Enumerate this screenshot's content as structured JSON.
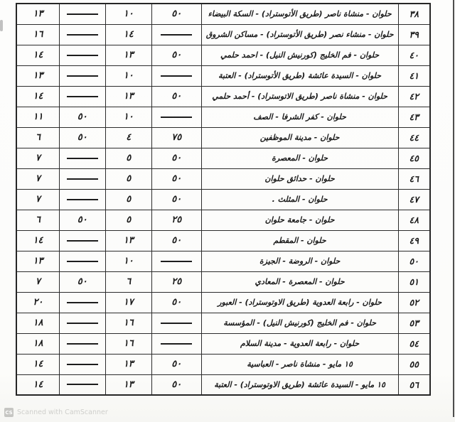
{
  "document": {
    "description": "Scanned page of an Arabic bus-route fare table (routes 38-56, Helwan / 15 May lines). No header row visible; four numeric columns per row hold two fare pairs in Egyptian pounds and piasters written in Arabic-Indic numerals; long dashes mean no piasters value.",
    "dash_symbol": "—",
    "colors": {
      "page_background": "#fdfdfc",
      "table_line": "#2c2c2c",
      "ink": "#1b1b1b",
      "watermark_gray": "#cfcfcc"
    }
  },
  "table": {
    "column_order_note": "Columns right-to-left: route number, route name, then four fare cells (rightmost first).",
    "rows": [
      {
        "no": "٣٨",
        "route": "حلوان - منشاة ناصر (طريق الأتوستراد) - السكة البيضاء",
        "fares": [
          "٥٠",
          "١٠",
          "—",
          "١٣"
        ]
      },
      {
        "no": "٣٩",
        "route": "حلوان - منشاء نصر (طريق الأتوستراد) - مساكن الشروق",
        "fares": [
          "—",
          "١٤",
          "—",
          "١٦"
        ]
      },
      {
        "no": "٤٠",
        "route": "حلوان - فم الخليج (كورنيش النيل) - احمد حلمي",
        "fares": [
          "٥٠",
          "١٣",
          "—",
          "١٤"
        ]
      },
      {
        "no": "٤١",
        "route": "حلوان - السيدة عائشة (طريق الأتوستراد) - العتبة",
        "fares": [
          "—",
          "١٠",
          "—",
          "١٣"
        ]
      },
      {
        "no": "٤٢",
        "route": "حلوان - منشاة ناصر (طريق الاتوستراد) - أحمد حلمي",
        "fares": [
          "٥٠",
          "١٣",
          "—",
          "١٤"
        ]
      },
      {
        "no": "٤٣",
        "route": "حلوان - كفر الشرفا - الصف",
        "fares": [
          "—",
          "١٠",
          "٥٠",
          "١١"
        ]
      },
      {
        "no": "٤٤",
        "route": "حلوان - مدينة الموظفين",
        "fares": [
          "٧٥",
          "٤",
          "٥٠",
          "٦"
        ]
      },
      {
        "no": "٤٥",
        "route": "حلوان - المعصرة",
        "fares": [
          "٥٠",
          "٥",
          "—",
          "٧"
        ]
      },
      {
        "no": "٤٦",
        "route": "حلوان - حدائق حلوان",
        "fares": [
          "٥٠",
          "٥",
          "—",
          "٧"
        ]
      },
      {
        "no": "٤٧",
        "route": "حلوان - المثلث .",
        "fares": [
          "٥٠",
          "٥",
          "—",
          "٧"
        ]
      },
      {
        "no": "٤٨",
        "route": "حلوان - جامعة حلوان",
        "fares": [
          "٢٥",
          "٥",
          "٥٠",
          "٦"
        ]
      },
      {
        "no": "٤٩",
        "route": "حلوان - المقطم",
        "fares": [
          "٥٠",
          "١٣",
          "—",
          "١٤"
        ]
      },
      {
        "no": "٥٠",
        "route": "حلوان - الروضة - الجيزة",
        "fares": [
          "—",
          "١٠",
          "—",
          "١٣"
        ]
      },
      {
        "no": "٥١",
        "route": "حلوان - المعصرة - المعادي",
        "fares": [
          "٢٥",
          "٦",
          "٥٠",
          "٧"
        ]
      },
      {
        "no": "٥٢",
        "route": "حلوان - رابعة العدوية (طريق الاوتوستراد) - العبور",
        "fares": [
          "٥٠",
          "١٧",
          "—",
          "٢٠"
        ]
      },
      {
        "no": "٥٣",
        "route": "حلوان - فم الخليج (كورنيش النيل) - المؤسسة",
        "fares": [
          "—",
          "١٦",
          "—",
          "١٨"
        ]
      },
      {
        "no": "٥٤",
        "route": "حلوان - رابعة العدوية - مدينة السلام",
        "fares": [
          "—",
          "١٦",
          "—",
          "١٨"
        ]
      },
      {
        "no": "٥٥",
        "route": "١٥ مايو - منشاة ناصر - العباسية",
        "fares": [
          "٥٠",
          "١٣",
          "—",
          "١٤"
        ]
      },
      {
        "no": "٥٦",
        "route": "١٥ مايو - السيدة عائشة (طريق الاوتوستراد) - العتبة",
        "fares": [
          "٥٠",
          "١٣",
          "—",
          "١٤"
        ]
      }
    ]
  },
  "watermark": {
    "badge": "CS",
    "text": "Scanned with CamScanner"
  }
}
